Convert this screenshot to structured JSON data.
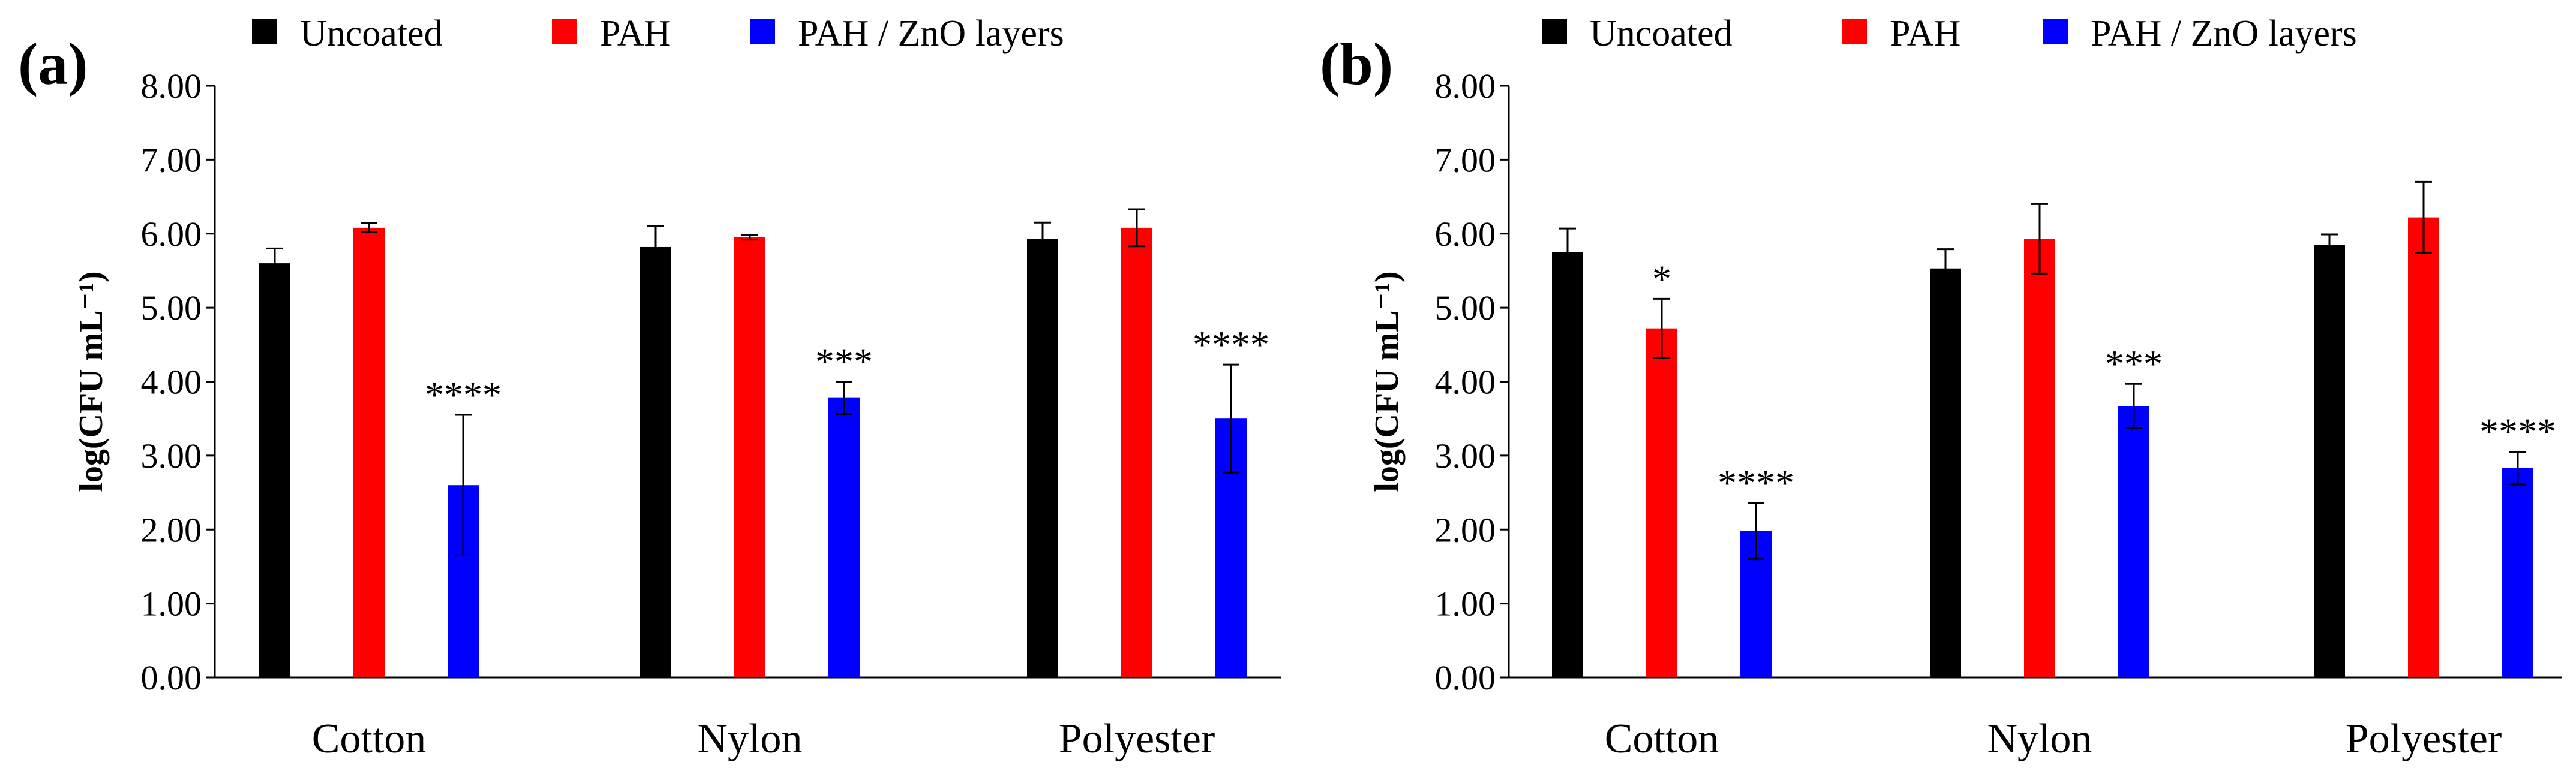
{
  "chart_data": [
    {
      "panel": "(a)",
      "type": "bar",
      "ylabel": "log(CFU mL⁻¹)",
      "ylim": [
        0,
        8
      ],
      "yticks": [
        "0.00",
        "1.00",
        "2.00",
        "3.00",
        "4.00",
        "5.00",
        "6.00",
        "7.00",
        "8.00"
      ],
      "categories": [
        "Cotton",
        "Nylon",
        "Polyester"
      ],
      "legend": [
        "Uncoated",
        "PAH",
        "PAH / ZnO layers"
      ],
      "series": [
        {
          "name": "Uncoated",
          "color": "#000000",
          "values": [
            5.6,
            5.82,
            5.93
          ],
          "errors": [
            0.2,
            0.28,
            0.22
          ],
          "sig": [
            "",
            "",
            ""
          ]
        },
        {
          "name": "PAH",
          "color": "#ff0000",
          "values": [
            6.08,
            5.95,
            6.08
          ],
          "errors": [
            0.06,
            0.03,
            0.25
          ],
          "sig": [
            "",
            "",
            ""
          ]
        },
        {
          "name": "PAH / ZnO layers",
          "color": "#0000ff",
          "values": [
            2.6,
            3.78,
            3.5
          ],
          "errors": [
            0.95,
            0.22,
            0.73
          ],
          "sig": [
            "****",
            "***",
            "****"
          ]
        }
      ]
    },
    {
      "panel": "(b)",
      "type": "bar",
      "ylabel": "log(CFU mL⁻¹)",
      "ylim": [
        0,
        8
      ],
      "yticks": [
        "0.00",
        "1.00",
        "2.00",
        "3.00",
        "4.00",
        "5.00",
        "6.00",
        "7.00",
        "8.00"
      ],
      "categories": [
        "Cotton",
        "Nylon",
        "Polyester"
      ],
      "legend": [
        "Uncoated",
        "PAH",
        "PAH / ZnO layers"
      ],
      "series": [
        {
          "name": "Uncoated",
          "color": "#000000",
          "values": [
            5.75,
            5.53,
            5.85
          ],
          "errors": [
            0.32,
            0.26,
            0.14
          ],
          "sig": [
            "",
            "",
            ""
          ]
        },
        {
          "name": "PAH",
          "color": "#ff0000",
          "values": [
            4.72,
            5.93,
            6.22
          ],
          "errors": [
            0.4,
            0.47,
            0.48
          ],
          "sig": [
            "*",
            "",
            ""
          ]
        },
        {
          "name": "PAH / ZnO layers",
          "color": "#0000ff",
          "values": [
            1.98,
            3.67,
            2.83
          ],
          "errors": [
            0.38,
            0.3,
            0.22
          ],
          "sig": [
            "****",
            "***",
            "****"
          ]
        }
      ]
    }
  ]
}
